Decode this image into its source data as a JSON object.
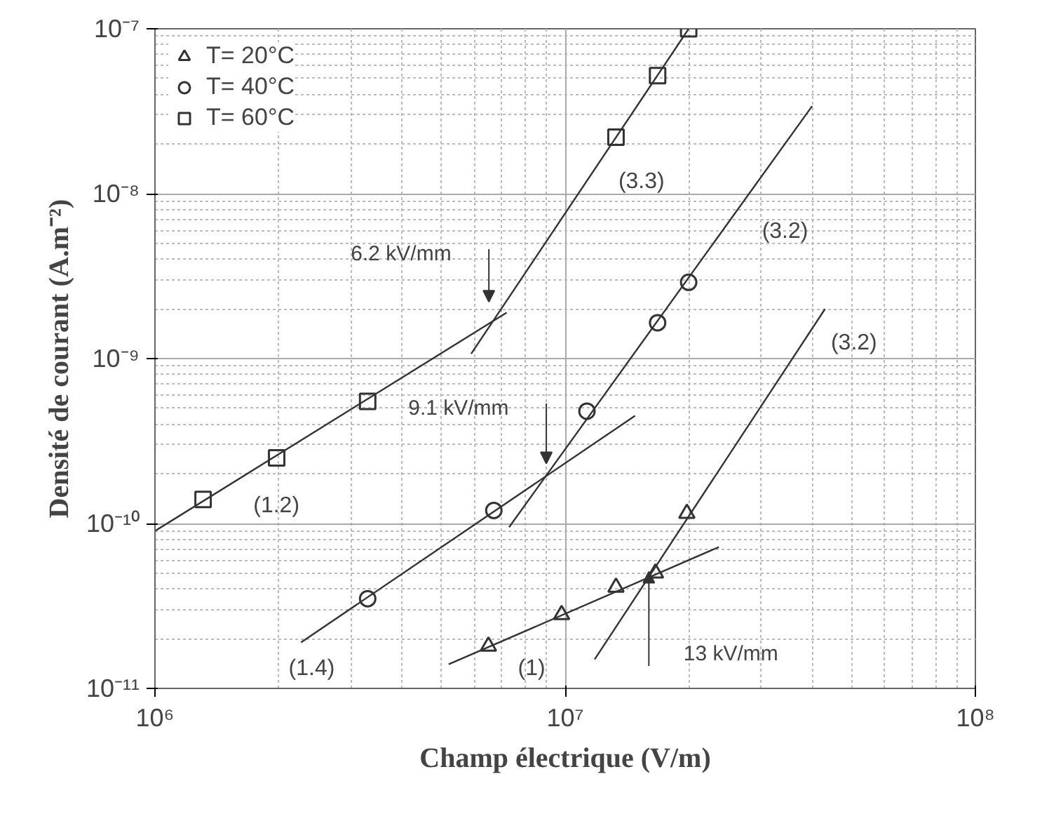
{
  "chart_data": {
    "type": "scatter",
    "xlabel": "Champ électrique (V/m)",
    "ylabel": "Densité de courant (A.m⁻²)",
    "log": "xy",
    "grid": true,
    "legend": "top left",
    "xlim": [
      1000000,
      100000000
    ],
    "ylim": [
      1e-11,
      1e-07
    ],
    "xticks": [
      {
        "value": 1000000,
        "label": "10⁶"
      },
      {
        "value": 10000000,
        "label": "10⁷"
      },
      {
        "value": 100000000,
        "label": "10⁸"
      }
    ],
    "yticks": [
      {
        "value": 1e-11,
        "label": "10⁻¹¹"
      },
      {
        "value": 1e-10,
        "label": "10⁻¹⁰"
      },
      {
        "value": 1e-09,
        "label": "10⁻⁹"
      },
      {
        "value": 1e-08,
        "label": "10⁻⁸"
      },
      {
        "value": 1e-07,
        "label": "10⁻⁷"
      }
    ],
    "series": [
      {
        "name": "T= 20°C",
        "color": "#333333",
        "marker": "triangle",
        "x": [
          6500000,
          9800000,
          13300000,
          16600000,
          19800000
        ],
        "values": [
          1.8e-11,
          2.8e-11,
          4.1e-11,
          5e-11,
          1.15e-10
        ]
      },
      {
        "name": "T= 40°C",
        "color": "#333333",
        "marker": "circle",
        "x": [
          3300000,
          6700000,
          11300000,
          16800000,
          20000000
        ],
        "values": [
          3.5e-11,
          1.2e-10,
          4.8e-10,
          1.65e-09,
          2.9e-09
        ]
      },
      {
        "name": "T= 60°C",
        "color": "#333333",
        "marker": "square",
        "x": [
          1310000,
          1980000,
          3300000,
          13300000,
          16800000,
          20000000
        ],
        "values": [
          1.4e-10,
          2.5e-10,
          5.5e-10,
          2.2e-08,
          5.2e-08,
          1e-07
        ]
      },
      {
        "type": "line",
        "color": "#333333",
        "x": [
          1000000,
          7200000
        ],
        "values": [
          9e-11,
          1.9e-09
        ]
      },
      {
        "type": "line",
        "color": "#333333",
        "x": [
          5900000,
          20000000
        ],
        "values": [
          1.07e-09,
          1e-07
        ]
      },
      {
        "type": "line",
        "color": "#333333",
        "x": [
          2270000,
          14800000
        ],
        "values": [
          1.9e-11,
          4.5e-10
        ]
      },
      {
        "type": "line",
        "color": "#333333",
        "x": [
          7300000,
          40000000
        ],
        "values": [
          9.5e-11,
          3.4e-08
        ]
      },
      {
        "type": "line",
        "color": "#333333",
        "x": [
          5200000,
          23700000
        ],
        "values": [
          1.4e-11,
          7.2e-11
        ]
      },
      {
        "type": "line",
        "color": "#333333",
        "x": [
          11800000,
          43000000
        ],
        "values": [
          1.5e-11,
          2e-09
        ]
      }
    ],
    "annotations": [
      "(1.2)",
      "(1.4)",
      "(1)",
      "(3.3)",
      "(3.2)",
      "(3.2)",
      "6.2 kV/mm",
      "9.1 kV/mm",
      "13 kV/mm"
    ]
  }
}
